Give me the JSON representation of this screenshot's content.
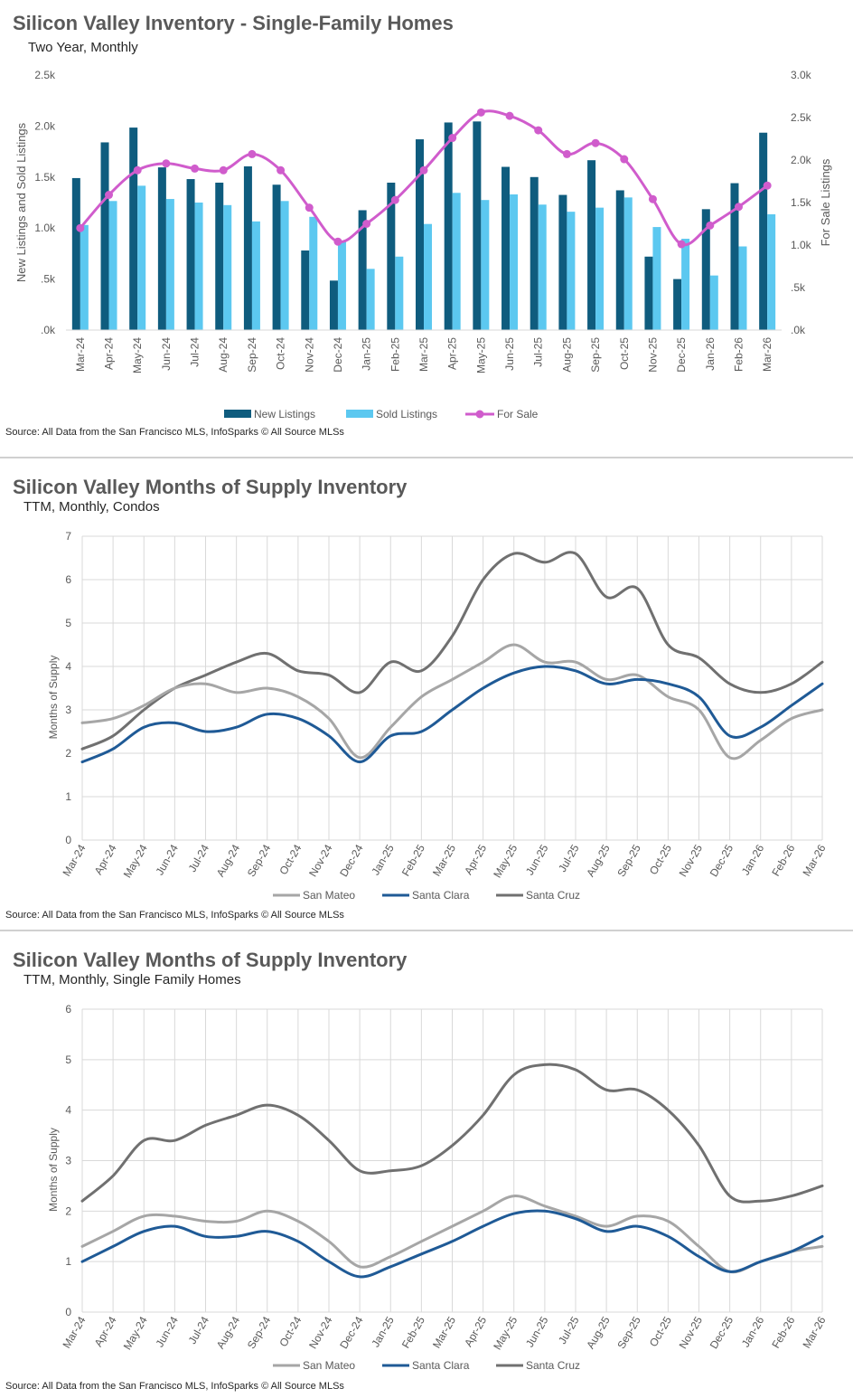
{
  "colors": {
    "new_listings": "#0f5c7e",
    "sold_listings": "#5cc8f0",
    "for_sale": "#d05ccc",
    "san_mateo": "#a6a6a6",
    "santa_clara": "#1f5a96",
    "santa_cruz": "#707070"
  },
  "months": [
    "Mar-24",
    "Apr-24",
    "May-24",
    "Jun-24",
    "Jul-24",
    "Aug-24",
    "Sep-24",
    "Oct-24",
    "Nov-24",
    "Dec-24",
    "Jan-25",
    "Feb-25",
    "Mar-25",
    "Apr-25",
    "May-25",
    "Jun-25",
    "Jul-25",
    "Aug-25",
    "Sep-25",
    "Oct-25",
    "Nov-25",
    "Dec-25",
    "Jan-26",
    "Feb-26",
    "Mar-26"
  ],
  "chart1": {
    "title": "Silicon Valley Inventory - Single-Family Homes",
    "subtitle": "Two Year, Monthly",
    "source": "Source: All Data from the San Francisco MLS, InfoSparks © All Source MLSs",
    "ylabel_left": "New Listings and Sold Listings",
    "ylabel_right": "For Sale Listings",
    "left_ticks": [
      ".0k",
      ".5k",
      "1.0k",
      "1.5k",
      "2.0k",
      "2.5k"
    ],
    "right_ticks": [
      ".0k",
      ".5k",
      "1.0k",
      "1.5k",
      "2.0k",
      "2.5k",
      "3.0k"
    ],
    "legend": {
      "new": "New Listings",
      "sold": "Sold Listings",
      "forsale": "For Sale"
    }
  },
  "chart2": {
    "title": "Silicon Valley Months of Supply Inventory",
    "subtitle": "TTM, Monthly, Condos",
    "source": "Source: All Data from the San Francisco MLS, InfoSparks © All Source MLSs",
    "ylabel": "Months of Supply",
    "ticks": [
      "0",
      "1",
      "2",
      "3",
      "4",
      "5",
      "6",
      "7"
    ],
    "legend": {
      "a": "San Mateo",
      "b": "Santa Clara",
      "c": "Santa Cruz"
    }
  },
  "chart3": {
    "title": "Silicon Valley Months of Supply Inventory",
    "subtitle": "TTM, Monthly, Single Family Homes",
    "source": "Source: All Data from the San Francisco MLS, InfoSparks © All Source MLSs",
    "ylabel": "Months of Supply",
    "ticks": [
      "0",
      "1",
      "2",
      "3",
      "4",
      "5",
      "6"
    ],
    "legend": {
      "a": "San Mateo",
      "b": "Santa Clara",
      "c": "Santa Cruz"
    }
  },
  "chart_data": [
    {
      "type": "bar",
      "title": "Silicon Valley Inventory - Single-Family Homes",
      "subtitle": "Two Year, Monthly",
      "xlabel": "",
      "ylabel": "New Listings and Sold Listings",
      "y2label": "For Sale Listings",
      "ylim": [
        0,
        2500
      ],
      "y2lim": [
        0,
        3000
      ],
      "grid": false,
      "legend": "bottom",
      "categories": [
        "Mar-24",
        "Apr-24",
        "May-24",
        "Jun-24",
        "Jul-24",
        "Aug-24",
        "Sep-24",
        "Oct-24",
        "Nov-24",
        "Dec-24",
        "Jan-25",
        "Feb-25",
        "Mar-25",
        "Apr-25",
        "May-25",
        "Jun-25",
        "Jul-25",
        "Aug-25",
        "Sep-25",
        "Oct-25",
        "Nov-25",
        "Dec-25",
        "Jan-26",
        "Feb-26",
        "Mar-26"
      ],
      "series": [
        {
          "name": "New Listings",
          "type": "bar",
          "axis": "left",
          "values": [
            1490,
            1840,
            1985,
            1595,
            1480,
            1445,
            1605,
            1425,
            780,
            485,
            1175,
            1445,
            1870,
            2035,
            2045,
            1600,
            1500,
            1325,
            1665,
            1370,
            720,
            500,
            1185,
            1440,
            1935
          ]
        },
        {
          "name": "Sold Listings",
          "type": "bar",
          "axis": "left",
          "values": [
            1030,
            1265,
            1415,
            1285,
            1250,
            1225,
            1065,
            1265,
            1110,
            870,
            600,
            720,
            1040,
            1345,
            1275,
            1330,
            1230,
            1160,
            1200,
            1300,
            1010,
            895,
            535,
            820,
            1135
          ]
        },
        {
          "name": "For Sale",
          "type": "line",
          "axis": "right",
          "values": [
            1200,
            1590,
            1880,
            1960,
            1900,
            1880,
            2070,
            1880,
            1440,
            1040,
            1250,
            1530,
            1880,
            2260,
            2560,
            2520,
            2350,
            2070,
            2200,
            2010,
            1540,
            1010,
            1230,
            1450,
            1700
          ]
        }
      ]
    },
    {
      "type": "line",
      "title": "Silicon Valley Months of Supply Inventory",
      "subtitle": "TTM, Monthly, Condos",
      "xlabel": "",
      "ylabel": "Months of Supply",
      "ylim": [
        0,
        7
      ],
      "grid": true,
      "legend": "bottom",
      "categories": [
        "Mar-24",
        "Apr-24",
        "May-24",
        "Jun-24",
        "Jul-24",
        "Aug-24",
        "Sep-24",
        "Oct-24",
        "Nov-24",
        "Dec-24",
        "Jan-25",
        "Feb-25",
        "Mar-25",
        "Apr-25",
        "May-25",
        "Jun-25",
        "Jul-25",
        "Aug-25",
        "Sep-25",
        "Oct-25",
        "Nov-25",
        "Dec-25",
        "Jan-26",
        "Feb-26",
        "Mar-26"
      ],
      "series": [
        {
          "name": "San Mateo",
          "values": [
            2.7,
            2.8,
            3.1,
            3.5,
            3.6,
            3.4,
            3.5,
            3.3,
            2.8,
            1.9,
            2.6,
            3.3,
            3.7,
            4.1,
            4.5,
            4.1,
            4.1,
            3.7,
            3.8,
            3.3,
            3.0,
            1.9,
            2.3,
            2.8,
            3.0
          ]
        },
        {
          "name": "Santa Clara",
          "values": [
            1.8,
            2.1,
            2.6,
            2.7,
            2.5,
            2.6,
            2.9,
            2.8,
            2.4,
            1.8,
            2.4,
            2.5,
            3.0,
            3.5,
            3.85,
            4.0,
            3.9,
            3.6,
            3.7,
            3.6,
            3.3,
            2.4,
            2.6,
            3.1,
            3.6
          ]
        },
        {
          "name": "Santa Cruz",
          "values": [
            2.1,
            2.4,
            3.0,
            3.5,
            3.8,
            4.1,
            4.3,
            3.9,
            3.8,
            3.4,
            4.1,
            3.9,
            4.7,
            6.0,
            6.6,
            6.4,
            6.6,
            5.6,
            5.8,
            4.5,
            4.2,
            3.6,
            3.4,
            3.6,
            4.1
          ]
        }
      ]
    },
    {
      "type": "line",
      "title": "Silicon Valley Months of Supply Inventory",
      "subtitle": "TTM, Monthly, Single Family Homes",
      "xlabel": "",
      "ylabel": "Months of Supply",
      "ylim": [
        0,
        6
      ],
      "grid": true,
      "legend": "bottom",
      "categories": [
        "Mar-24",
        "Apr-24",
        "May-24",
        "Jun-24",
        "Jul-24",
        "Aug-24",
        "Sep-24",
        "Oct-24",
        "Nov-24",
        "Dec-24",
        "Jan-25",
        "Feb-25",
        "Mar-25",
        "Apr-25",
        "May-25",
        "Jun-25",
        "Jul-25",
        "Aug-25",
        "Sep-25",
        "Oct-25",
        "Nov-25",
        "Dec-25",
        "Jan-26",
        "Feb-26",
        "Mar-26"
      ],
      "series": [
        {
          "name": "San Mateo",
          "values": [
            1.3,
            1.6,
            1.9,
            1.9,
            1.8,
            1.8,
            2.0,
            1.8,
            1.4,
            0.9,
            1.1,
            1.4,
            1.7,
            2.0,
            2.3,
            2.1,
            1.9,
            1.7,
            1.9,
            1.8,
            1.3,
            0.8,
            1.0,
            1.2,
            1.3
          ]
        },
        {
          "name": "Santa Clara",
          "values": [
            1.0,
            1.3,
            1.6,
            1.7,
            1.5,
            1.5,
            1.6,
            1.4,
            1.0,
            0.7,
            0.9,
            1.15,
            1.4,
            1.7,
            1.95,
            2.0,
            1.85,
            1.6,
            1.7,
            1.5,
            1.1,
            0.8,
            1.0,
            1.2,
            1.5
          ]
        },
        {
          "name": "Santa Cruz",
          "values": [
            2.2,
            2.7,
            3.4,
            3.4,
            3.7,
            3.9,
            4.1,
            3.9,
            3.4,
            2.8,
            2.8,
            2.9,
            3.3,
            3.9,
            4.7,
            4.9,
            4.8,
            4.4,
            4.4,
            4.0,
            3.3,
            2.3,
            2.2,
            2.3,
            2.5
          ]
        }
      ]
    }
  ]
}
